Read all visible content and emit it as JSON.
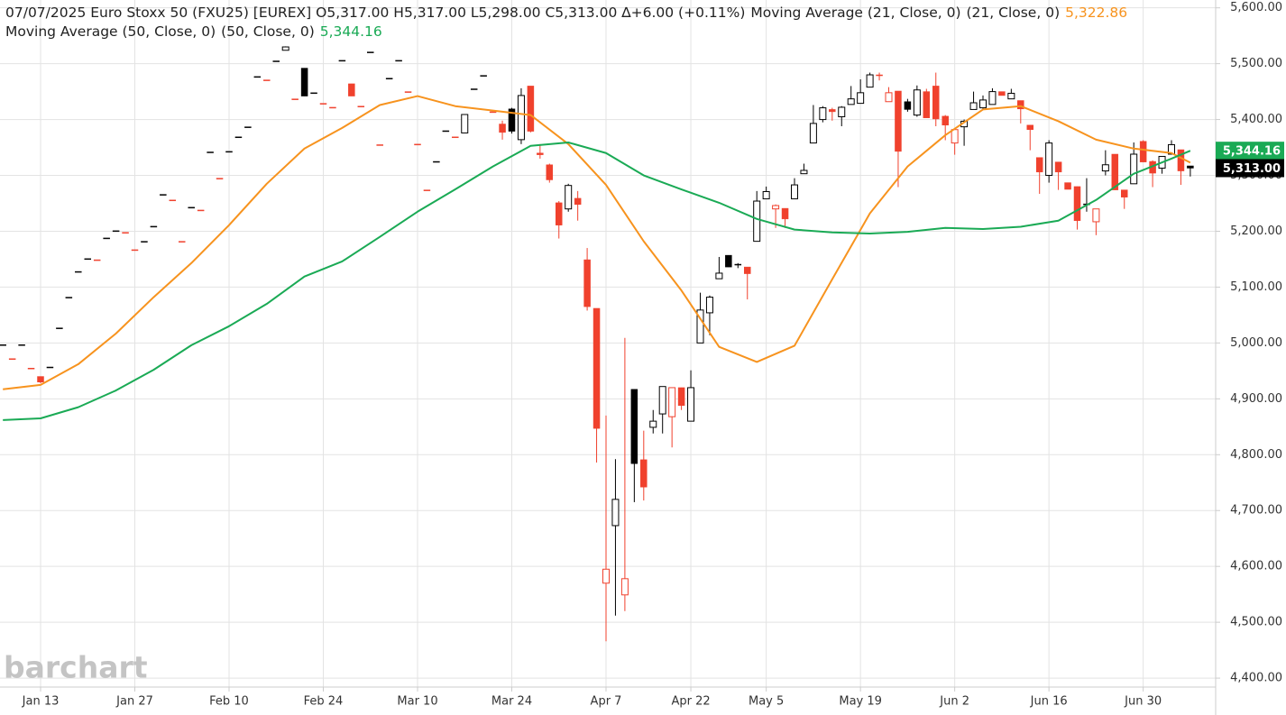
{
  "chart_data": {
    "type": "candlestick",
    "title": "07/07/2025 Euro Stoxx 50 (FXU25) [EUREX] O5,317.00 H5,317.00 L5,298.00 C5,313.00 ∆+6.00 (+0.11%)",
    "watermark": "barchart",
    "up_color": "#000000",
    "down_color": "#f0412d",
    "grid": true,
    "last_close_label": "5,313.00",
    "categories": [
      null,
      null,
      null,
      null,
      "Jan 13",
      null,
      null,
      null,
      null,
      null,
      null,
      null,
      null,
      null,
      "Jan 27",
      null,
      null,
      null,
      null,
      null,
      null,
      null,
      null,
      null,
      "Feb 10",
      null,
      null,
      null,
      null,
      null,
      null,
      null,
      null,
      null,
      "Feb 24",
      null,
      null,
      null,
      null,
      null,
      null,
      null,
      null,
      null,
      "Mar 10",
      null,
      null,
      null,
      null,
      null,
      null,
      null,
      null,
      null,
      "Mar 24",
      null,
      null,
      null,
      null,
      null,
      null,
      null,
      null,
      null,
      "Apr 7",
      null,
      null,
      null,
      null,
      null,
      null,
      null,
      null,
      "Apr 22",
      null,
      null,
      null,
      null,
      null,
      null,
      null,
      "May 5",
      null,
      null,
      null,
      null,
      null,
      null,
      null,
      null,
      null,
      "May 19",
      null,
      null,
      null,
      null,
      null,
      null,
      null,
      null,
      null,
      "Jun 2",
      null,
      null,
      null,
      null,
      null,
      null,
      null,
      null,
      null,
      "Jun 16",
      null,
      null,
      null,
      null,
      null,
      null,
      null,
      null,
      null,
      "Jun 30",
      null,
      null,
      null,
      null,
      null
    ],
    "open": [
      4997,
      4972,
      4997,
      4955,
      4940,
      4957,
      5027,
      5082,
      5128,
      5151,
      5149,
      5188,
      5201,
      5198,
      5167,
      5182,
      5209,
      5266,
      5256,
      5182,
      5243,
      5238,
      5342,
      5295,
      5343,
      5369,
      5387,
      5477,
      5471,
      5505,
      5524,
      5437,
      5492,
      5448,
      5429,
      5422,
      5506,
      5464,
      5424,
      5521,
      5355,
      5474,
      5506,
      5450,
      5356,
      5274,
      5325,
      5380,
      5369,
      5376,
      5455,
      5479,
      5414,
      5392,
      5419,
      5364,
      5460,
      5340,
      5319,
      5251,
      5240,
      5259,
      5149,
      5062,
      4570,
      4673,
      4549,
      4917,
      4791,
      4849,
      4873,
      4868,
      4920,
      4860,
      5000,
      5054,
      5115,
      5157,
      5141,
      5136,
      5182,
      5258,
      5240,
      5241,
      5258,
      5303,
      5358,
      5400,
      5418,
      5405,
      5427,
      5429,
      5458,
      5480,
      5432,
      5451,
      5432,
      5408,
      5450,
      5460,
      5406,
      5358,
      5387,
      5418,
      5421,
      5427,
      5450,
      5437,
      5434,
      5390,
      5332,
      5300,
      5324,
      5287,
      5280,
      5249,
      5217,
      5308,
      5338,
      5274,
      5285,
      5361,
      5325,
      5313,
      5338,
      5346,
      5317
    ],
    "high": [
      4997,
      4972,
      4997,
      4955,
      4940,
      4957,
      5027,
      5082,
      5128,
      5151,
      5149,
      5188,
      5201,
      5198,
      5167,
      5182,
      5209,
      5266,
      5256,
      5182,
      5243,
      5238,
      5342,
      5295,
      5343,
      5369,
      5387,
      5477,
      5471,
      5505,
      5531,
      5437,
      5492,
      5448,
      5429,
      5422,
      5506,
      5464,
      5424,
      5521,
      5355,
      5474,
      5506,
      5450,
      5356,
      5274,
      5325,
      5380,
      5369,
      5409,
      5455,
      5479,
      5414,
      5398,
      5421,
      5456,
      5460,
      5356,
      5321,
      5254,
      5285,
      5272,
      5170,
      5062,
      4870,
      4792,
      5009,
      4917,
      4843,
      4880,
      4922,
      4920,
      4920,
      4951,
      5090,
      5085,
      5154,
      5157,
      5143,
      5136,
      5272,
      5280,
      5248,
      5241,
      5295,
      5321,
      5426,
      5424,
      5421,
      5424,
      5460,
      5472,
      5484,
      5484,
      5458,
      5451,
      5437,
      5461,
      5455,
      5484,
      5408,
      5382,
      5400,
      5450,
      5443,
      5456,
      5450,
      5455,
      5434,
      5390,
      5332,
      5363,
      5324,
      5287,
      5280,
      5295,
      5240,
      5345,
      5338,
      5274,
      5359,
      5363,
      5327,
      5334,
      5363,
      5346,
      5317
    ],
    "low": [
      4997,
      4972,
      4997,
      4955,
      4928,
      4957,
      5027,
      5082,
      5128,
      5151,
      5149,
      5188,
      5201,
      5198,
      5167,
      5182,
      5209,
      5266,
      5256,
      5182,
      5243,
      5238,
      5342,
      5295,
      5343,
      5369,
      5387,
      5477,
      5471,
      5505,
      5524,
      5437,
      5442,
      5448,
      5429,
      5422,
      5506,
      5442,
      5424,
      5521,
      5355,
      5474,
      5506,
      5450,
      5356,
      5274,
      5325,
      5380,
      5369,
      5376,
      5455,
      5479,
      5414,
      5364,
      5375,
      5356,
      5377,
      5330,
      5287,
      5187,
      5235,
      5219,
      5058,
      4786,
      4466,
      4512,
      4520,
      4715,
      4718,
      4838,
      4838,
      4813,
      4880,
      4860,
      5000,
      5014,
      5115,
      5136,
      5134,
      5078,
      5182,
      5258,
      5206,
      5206,
      5258,
      5303,
      5358,
      5395,
      5398,
      5388,
      5427,
      5429,
      5458,
      5470,
      5432,
      5279,
      5414,
      5405,
      5403,
      5388,
      5363,
      5337,
      5353,
      5418,
      5418,
      5427,
      5443,
      5437,
      5393,
      5345,
      5267,
      5287,
      5274,
      5275,
      5203,
      5235,
      5193,
      5300,
      5274,
      5240,
      5285,
      5324,
      5279,
      5303,
      5338,
      5283,
      5298
    ],
    "close": [
      4997,
      4972,
      4997,
      4955,
      4930,
      4957,
      5027,
      5082,
      5128,
      5151,
      5149,
      5188,
      5201,
      5198,
      5167,
      5182,
      5209,
      5266,
      5256,
      5182,
      5243,
      5238,
      5342,
      5295,
      5343,
      5369,
      5387,
      5477,
      5471,
      5505,
      5530,
      5437,
      5442,
      5448,
      5429,
      5422,
      5506,
      5442,
      5424,
      5521,
      5355,
      5474,
      5506,
      5450,
      5356,
      5274,
      5325,
      5380,
      5369,
      5409,
      5455,
      5479,
      5414,
      5377,
      5379,
      5443,
      5379,
      5337,
      5292,
      5211,
      5282,
      5248,
      5065,
      4847,
      4595,
      4720,
      4578,
      4784,
      4742,
      4860,
      4922,
      4920,
      4888,
      4920,
      5059,
      5082,
      5125,
      5136,
      5140,
      5124,
      5254,
      5271,
      5246,
      5222,
      5283,
      5309,
      5393,
      5421,
      5414,
      5422,
      5437,
      5448,
      5480,
      5479,
      5448,
      5343,
      5418,
      5453,
      5403,
      5401,
      5390,
      5382,
      5397,
      5430,
      5435,
      5450,
      5443,
      5447,
      5419,
      5382,
      5306,
      5358,
      5306,
      5275,
      5219,
      5248,
      5240,
      5319,
      5274,
      5261,
      5338,
      5324,
      5304,
      5334,
      5355,
      5308,
      5313
    ],
    "series": [
      {
        "name": "Moving Average (21, Close, 0)",
        "params": "(21, Close, 0)",
        "color": "#f7931e",
        "x": [
          0,
          4,
          8,
          12,
          16,
          20,
          24,
          28,
          32,
          36,
          40,
          44,
          48,
          52,
          56,
          60,
          64,
          68,
          72,
          76,
          80,
          84,
          88,
          92,
          96,
          100,
          104,
          108,
          112,
          116,
          120,
          124,
          126
        ],
        "values": [
          4917,
          4925,
          4962,
          5017,
          5082,
          5143,
          5211,
          5285,
          5348,
          5385,
          5426,
          5442,
          5424,
          5416,
          5408,
          5356,
          5283,
          5182,
          5094,
          4993,
          4966,
          4995,
          5114,
          5232,
          5316,
          5372,
          5418,
          5424,
          5397,
          5364,
          5348,
          5340,
          5322.86
        ],
        "value_label": "5,322.86"
      },
      {
        "name": "Moving Average (50, Close, 0)",
        "params": "(50, Close, 0)",
        "color": "#1aaa55",
        "x": [
          0,
          4,
          8,
          12,
          16,
          20,
          24,
          28,
          32,
          36,
          40,
          44,
          48,
          52,
          56,
          60,
          64,
          68,
          72,
          76,
          80,
          84,
          88,
          92,
          96,
          100,
          104,
          108,
          112,
          116,
          120,
          124,
          126
        ],
        "values": [
          4862,
          4865,
          4885,
          4915,
          4952,
          4996,
          5030,
          5070,
          5119,
          5146,
          5190,
          5235,
          5275,
          5316,
          5353,
          5359,
          5340,
          5300,
          5275,
          5251,
          5222,
          5203,
          5198,
          5196,
          5199,
          5206,
          5204,
          5208,
          5219,
          5256,
          5303,
          5330,
          5344.16
        ],
        "value_label": "5,344.16"
      }
    ],
    "ylim": [
      4384,
      5614
    ],
    "yticks": [
      {
        "value": 4400,
        "label": "4,400.00"
      },
      {
        "value": 4500,
        "label": "4,500.00"
      },
      {
        "value": 4600,
        "label": "4,600.00"
      },
      {
        "value": 4700,
        "label": "4,700.00"
      },
      {
        "value": 4800,
        "label": "4,800.00"
      },
      {
        "value": 4900,
        "label": "4,900.00"
      },
      {
        "value": 5000,
        "label": "5,000.00"
      },
      {
        "value": 5100,
        "label": "5,100.00"
      },
      {
        "value": 5200,
        "label": "5,200.00"
      },
      {
        "value": 5300,
        "label": "5,300.00"
      },
      {
        "value": 5400,
        "label": "5,400.00"
      },
      {
        "value": 5500,
        "label": "5,500.00"
      },
      {
        "value": 5600,
        "label": "5,600.00"
      }
    ]
  }
}
